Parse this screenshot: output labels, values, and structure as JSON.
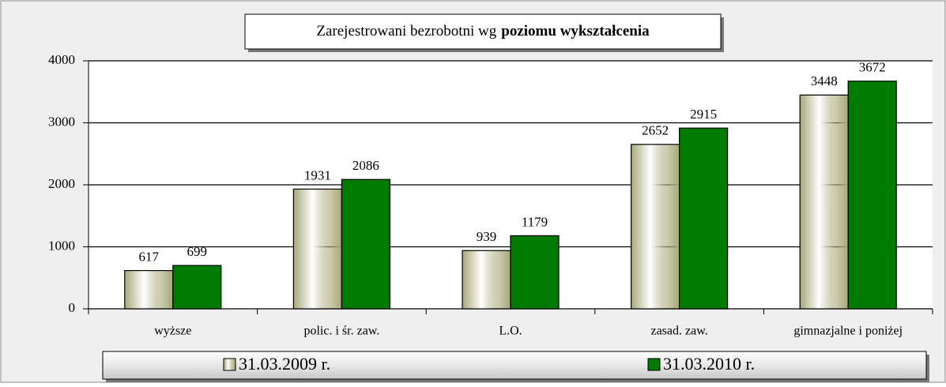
{
  "chart_data": {
    "type": "bar",
    "title": {
      "normal": "Zarejestrowani bezrobotni wg",
      "bold": "poziomu wykształcenia"
    },
    "categories": [
      "wyższe",
      "polic. i śr. zaw.",
      "L.O.",
      "zasad. zaw.",
      "gimnazjalne i poniżej"
    ],
    "series": [
      {
        "name": "31.03.2009 r.",
        "color": "#a8a878",
        "fill": "gradient",
        "values": [
          617,
          1931,
          939,
          2652,
          3448
        ]
      },
      {
        "name": "31.03.2010 r.",
        "color": "#007a00",
        "values": [
          699,
          2086,
          1179,
          2915,
          3672
        ]
      }
    ],
    "ylim": [
      0,
      4000
    ],
    "yticks": [
      0,
      1000,
      2000,
      3000,
      4000
    ],
    "grid": true,
    "legend": "bottom"
  }
}
